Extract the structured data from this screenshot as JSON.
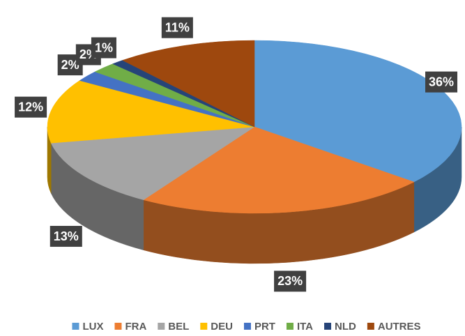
{
  "chart_data": {
    "type": "pie3d",
    "categories": [
      "LUX",
      "FRA",
      "BEL",
      "DEU",
      "PRT",
      "ITA",
      "NLD",
      "AUTRES"
    ],
    "values": [
      36,
      23,
      13,
      12,
      2,
      2,
      1,
      11
    ],
    "value_labels": [
      "36%",
      "23%",
      "13%",
      "12%",
      "2%",
      "2%",
      "1%",
      "11%"
    ],
    "colors": [
      "#5b9bd5",
      "#ed7d31",
      "#a5a5a5",
      "#ffc000",
      "#4472c4",
      "#70ad47",
      "#264478",
      "#9e480e"
    ],
    "legend": "bottom"
  }
}
